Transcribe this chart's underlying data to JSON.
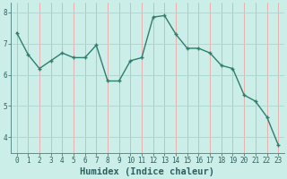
{
  "x": [
    0,
    1,
    2,
    3,
    4,
    5,
    6,
    7,
    8,
    9,
    10,
    11,
    12,
    13,
    14,
    15,
    16,
    17,
    18,
    19,
    20,
    21,
    22,
    23
  ],
  "y": [
    7.35,
    6.65,
    6.2,
    6.45,
    6.7,
    6.55,
    6.55,
    6.95,
    5.8,
    5.8,
    6.45,
    6.55,
    7.85,
    7.9,
    7.3,
    6.85,
    6.85,
    6.7,
    6.3,
    6.2,
    5.35,
    5.15,
    4.65,
    3.75
  ],
  "line_color": "#2e7d6e",
  "marker": "+",
  "marker_size": 3.5,
  "bg_color": "#cceee8",
  "grid_h_color": "#b0d8d0",
  "grid_v_color": "#e8b0b0",
  "xlabel": "Humidex (Indice chaleur)",
  "ylim": [
    3.5,
    8.3
  ],
  "xlim": [
    -0.5,
    23.5
  ],
  "yticks": [
    4,
    5,
    6,
    7,
    8
  ],
  "xticks": [
    0,
    1,
    2,
    3,
    4,
    5,
    6,
    7,
    8,
    9,
    10,
    11,
    12,
    13,
    14,
    15,
    16,
    17,
    18,
    19,
    20,
    21,
    22,
    23
  ],
  "tick_fontsize": 5.5,
  "xlabel_fontsize": 7.5,
  "linewidth": 1.0
}
